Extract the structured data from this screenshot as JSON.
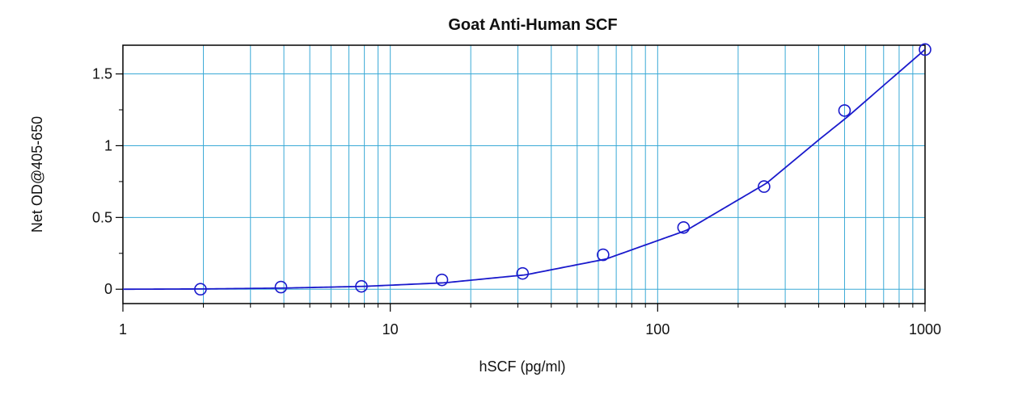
{
  "chart_data": {
    "type": "scatter",
    "title": "Goat Anti-Human SCF",
    "xlabel": "hSCF (pg/ml)",
    "ylabel": "Net OD@405-650",
    "x_scale": "log",
    "xlim": [
      1,
      1000
    ],
    "ylim": [
      -0.1,
      1.7
    ],
    "x_ticks": [
      1,
      10,
      100,
      1000
    ],
    "x_tick_labels": [
      "1",
      "10",
      "100",
      "1000"
    ],
    "y_ticks": [
      0,
      0.5,
      1,
      1.5
    ],
    "y_tick_labels": [
      "0",
      "0.5",
      "1",
      "1.5"
    ],
    "grid": true,
    "legend": "none",
    "series": [
      {
        "kind": "points",
        "x": [
          1.95,
          3.9,
          7.8,
          15.6,
          31.25,
          62.5,
          125,
          250,
          500,
          1000
        ],
        "y": [
          0.0,
          0.015,
          0.02,
          0.065,
          0.11,
          0.24,
          0.43,
          0.715,
          1.245,
          1.67
        ]
      },
      {
        "kind": "fit-curve",
        "x": [
          1,
          2,
          4,
          8,
          16,
          32,
          64,
          128,
          256,
          400,
          512,
          700,
          1000
        ],
        "y": [
          0.0,
          0.002,
          0.008,
          0.02,
          0.045,
          0.1,
          0.21,
          0.41,
          0.74,
          1.04,
          1.2,
          1.42,
          1.67
        ]
      }
    ],
    "colors": {
      "plot_background": "#ffffff",
      "grid": "#3aa9d6",
      "series": "#1a1acc",
      "axis": "#000000"
    }
  }
}
